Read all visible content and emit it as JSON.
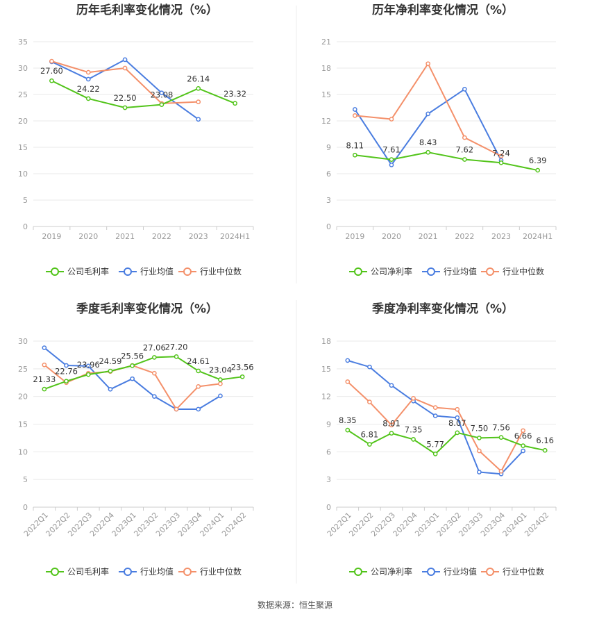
{
  "colors": {
    "company": "#52c41a",
    "industry_mean": "#4a7de0",
    "industry_median": "#f4906a"
  },
  "footer": {
    "source": "数据来源：恒生聚源"
  },
  "chart_data": [
    {
      "type": "line",
      "title": "历年毛利率变化情况（%）",
      "categories": [
        "2019",
        "2020",
        "2021",
        "2022",
        "2023",
        "2024H1"
      ],
      "ylim": [
        0,
        35
      ],
      "yticks": [
        0,
        5,
        10,
        15,
        20,
        25,
        30,
        35
      ],
      "grid": true,
      "legend_position": "bottom",
      "series": [
        {
          "name": "公司毛利率",
          "values": [
            27.6,
            24.22,
            22.5,
            23.08,
            26.14,
            23.32
          ],
          "labels": [
            "27.60",
            "24.22",
            "22.50",
            "23.08",
            "26.14",
            "23.32"
          ]
        },
        {
          "name": "行业均值",
          "values": [
            31.2,
            27.9,
            31.6,
            25.3,
            20.3,
            null
          ]
        },
        {
          "name": "行业中位数",
          "values": [
            31.3,
            29.2,
            30.0,
            23.3,
            23.6,
            null
          ]
        }
      ]
    },
    {
      "type": "line",
      "title": "历年净利率变化情况（%）",
      "categories": [
        "2019",
        "2020",
        "2021",
        "2022",
        "2023",
        "2024H1"
      ],
      "ylim": [
        0,
        21
      ],
      "yticks": [
        0,
        3,
        6,
        9,
        12,
        15,
        18,
        21
      ],
      "grid": true,
      "legend_position": "bottom",
      "series": [
        {
          "name": "公司净利率",
          "values": [
            8.11,
            7.61,
            8.43,
            7.62,
            7.24,
            6.39
          ],
          "labels": [
            "8.11",
            "7.61",
            "8.43",
            "7.62",
            "7.24",
            "6.39"
          ]
        },
        {
          "name": "行业均值",
          "values": [
            13.3,
            7.0,
            12.8,
            15.6,
            7.5,
            null
          ]
        },
        {
          "name": "行业中位数",
          "values": [
            12.6,
            12.2,
            18.5,
            10.1,
            8.0,
            null
          ]
        }
      ]
    },
    {
      "type": "line",
      "title": "季度毛利率变化情况（%）",
      "categories": [
        "2022Q1",
        "2022Q2",
        "2022Q3",
        "2022Q4",
        "2023Q1",
        "2023Q2",
        "2023Q3",
        "2023Q4",
        "2024Q1",
        "2024Q2"
      ],
      "ylim": [
        0,
        30
      ],
      "yticks": [
        0,
        5,
        10,
        15,
        20,
        25,
        30
      ],
      "grid": true,
      "legend_position": "bottom",
      "series": [
        {
          "name": "公司毛利率",
          "values": [
            21.33,
            22.76,
            23.96,
            24.59,
            25.56,
            27.06,
            27.2,
            24.61,
            23.04,
            23.56
          ],
          "labels": [
            "21.33",
            "22.76",
            "23.96",
            "24.59",
            "25.56",
            "27.06",
            "27.20",
            "24.61",
            "23.04",
            "23.56"
          ]
        },
        {
          "name": "行业均值",
          "values": [
            28.8,
            25.6,
            25.5,
            21.3,
            23.2,
            20.0,
            17.7,
            17.7,
            20.1,
            null
          ]
        },
        {
          "name": "行业中位数",
          "values": [
            25.7,
            22.5,
            24.2,
            24.5,
            25.6,
            24.2,
            17.7,
            21.8,
            22.3,
            null
          ]
        }
      ]
    },
    {
      "type": "line",
      "title": "季度净利率变化情况（%）",
      "categories": [
        "2022Q1",
        "2022Q2",
        "2022Q3",
        "2022Q4",
        "2023Q1",
        "2023Q2",
        "2023Q3",
        "2023Q4",
        "2024Q1",
        "2024Q2"
      ],
      "ylim": [
        0,
        18
      ],
      "yticks": [
        0,
        3,
        6,
        9,
        12,
        15,
        18
      ],
      "grid": true,
      "legend_position": "bottom",
      "series": [
        {
          "name": "公司净利率",
          "values": [
            8.35,
            6.81,
            8.01,
            7.35,
            5.77,
            8.07,
            7.5,
            7.56,
            6.66,
            6.16
          ],
          "labels": [
            "8.35",
            "6.81",
            "8.01",
            "7.35",
            "5.77",
            "8.07",
            "7.50",
            "7.56",
            "6.66",
            "6.16"
          ]
        },
        {
          "name": "行业均值",
          "values": [
            15.9,
            15.2,
            13.2,
            11.5,
            9.9,
            9.7,
            3.8,
            3.6,
            6.1,
            null
          ]
        },
        {
          "name": "行业中位数",
          "values": [
            13.6,
            11.4,
            8.9,
            11.8,
            10.8,
            10.6,
            6.1,
            3.9,
            8.3,
            null
          ]
        }
      ]
    }
  ]
}
